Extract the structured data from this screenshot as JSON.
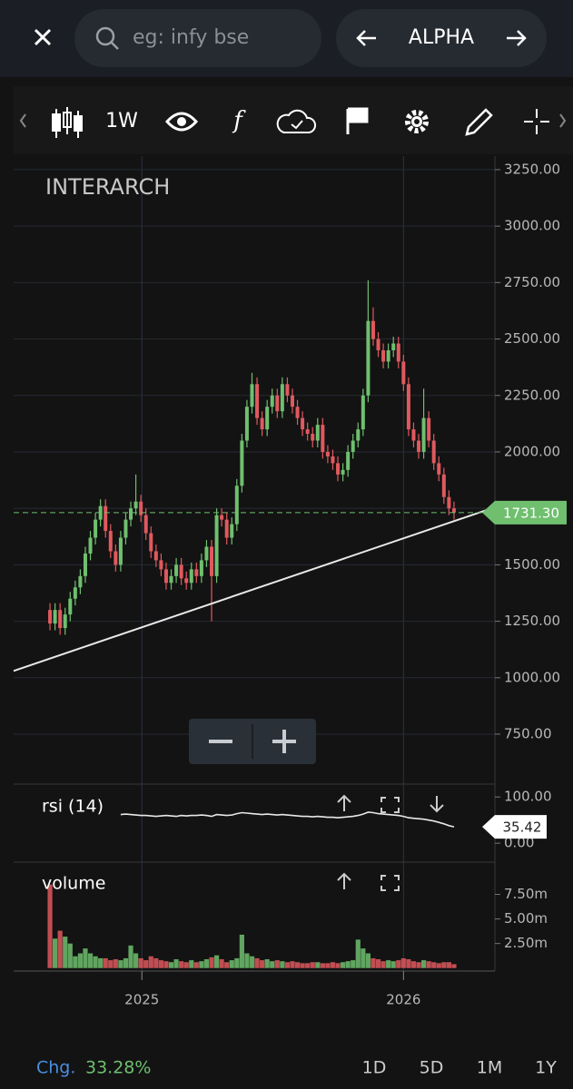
{
  "ui": {
    "search_placeholder": "eg: infy bse",
    "watchlist": "ALPHA",
    "interval": "1W",
    "change_label": "Chg.",
    "change_value": "33.28%",
    "ranges": [
      "1D",
      "5D",
      "1M",
      "1Y"
    ]
  },
  "chart_data": [
    {
      "type": "candlestick",
      "title": "INTERARCH",
      "up_color": "#6fbf6f",
      "down_color": "#e0595e",
      "xlim": [
        -7.2,
        88.1
      ],
      "xticks": [
        {
          "value": 18.2,
          "label": "2025"
        },
        {
          "value": 70,
          "label": "2026"
        }
      ],
      "ylim": [
        537,
        3310
      ],
      "yticks": [
        {
          "value": 750,
          "label": "750.00"
        },
        {
          "value": 1000,
          "label": "1000.00"
        },
        {
          "value": 1250,
          "label": "1250.00"
        },
        {
          "value": 1500,
          "label": "1500.00"
        },
        {
          "value": 1750,
          "label": "1750.00"
        },
        {
          "value": 2000,
          "label": "2000.00"
        },
        {
          "value": 2250,
          "label": "2250.00"
        },
        {
          "value": 2500,
          "label": "2500.00"
        },
        {
          "value": 2750,
          "label": "2750.00"
        },
        {
          "value": 3000,
          "label": "3000.00"
        },
        {
          "value": 3250,
          "label": "3250.00"
        }
      ],
      "grid": true,
      "open": [
        1300,
        1240,
        1300,
        1220,
        1280,
        1350,
        1400,
        1450,
        1550,
        1620,
        1700,
        1760,
        1650,
        1560,
        1500,
        1620,
        1700,
        1750,
        1780,
        1720,
        1640,
        1560,
        1520,
        1480,
        1420,
        1450,
        1500,
        1440,
        1420,
        1480,
        1450,
        1520,
        1580,
        1450,
        1720,
        1700,
        1620,
        1680,
        1850,
        2050,
        2200,
        2300,
        2150,
        2100,
        2200,
        2250,
        2180,
        2300,
        2250,
        2200,
        2150,
        2100,
        2080,
        2050,
        2120,
        2000,
        1980,
        1950,
        1900,
        1920,
        2000,
        2050,
        2100,
        2250,
        2580,
        2500,
        2450,
        2400,
        2450,
        2480,
        2400,
        2300,
        2100,
        2050,
        2000,
        2150,
        2050,
        1950,
        1900,
        1800,
        1750
      ],
      "high": [
        1330,
        1330,
        1330,
        1310,
        1380,
        1430,
        1480,
        1580,
        1650,
        1730,
        1790,
        1790,
        1680,
        1590,
        1650,
        1730,
        1780,
        1900,
        1810,
        1750,
        1670,
        1590,
        1550,
        1510,
        1480,
        1530,
        1530,
        1470,
        1510,
        1510,
        1550,
        1610,
        1610,
        1750,
        1750,
        1730,
        1710,
        1880,
        2080,
        2230,
        2350,
        2330,
        2180,
        2230,
        2280,
        2280,
        2330,
        2330,
        2280,
        2230,
        2180,
        2130,
        2110,
        2150,
        2150,
        2030,
        2010,
        1980,
        1950,
        2030,
        2080,
        2130,
        2280,
        2760,
        2640,
        2530,
        2480,
        2480,
        2510,
        2510,
        2430,
        2330,
        2130,
        2080,
        2280,
        2180,
        2080,
        1980,
        1930,
        1830,
        1780
      ],
      "low": [
        1210,
        1210,
        1190,
        1190,
        1250,
        1320,
        1370,
        1420,
        1520,
        1590,
        1670,
        1620,
        1530,
        1470,
        1470,
        1590,
        1670,
        1720,
        1690,
        1610,
        1530,
        1490,
        1450,
        1390,
        1390,
        1420,
        1410,
        1390,
        1390,
        1420,
        1420,
        1490,
        1250,
        1420,
        1670,
        1590,
        1590,
        1650,
        1820,
        2020,
        2170,
        2120,
        2070,
        2070,
        2170,
        2150,
        2150,
        2220,
        2170,
        2120,
        2070,
        2050,
        2020,
        2020,
        1970,
        1950,
        1920,
        1870,
        1870,
        1890,
        1970,
        2020,
        2070,
        2220,
        2470,
        2420,
        2370,
        2370,
        2420,
        2370,
        2270,
        2070,
        2020,
        1970,
        1970,
        2020,
        1920,
        1870,
        1770,
        1720,
        1700
      ],
      "close": [
        1240,
        1300,
        1220,
        1280,
        1350,
        1400,
        1450,
        1550,
        1620,
        1700,
        1760,
        1650,
        1560,
        1500,
        1620,
        1700,
        1750,
        1780,
        1720,
        1640,
        1560,
        1520,
        1480,
        1420,
        1450,
        1500,
        1440,
        1420,
        1480,
        1450,
        1520,
        1580,
        1450,
        1720,
        1700,
        1620,
        1680,
        1850,
        2050,
        2200,
        2300,
        2150,
        2100,
        2200,
        2250,
        2180,
        2300,
        2250,
        2200,
        2150,
        2100,
        2080,
        2050,
        2120,
        2000,
        1980,
        1950,
        1900,
        1920,
        2000,
        2050,
        2100,
        2250,
        2580,
        2500,
        2450,
        2400,
        2450,
        2480,
        2400,
        2300,
        2100,
        2050,
        2000,
        2150,
        2050,
        1950,
        1900,
        1800,
        1750,
        1731.3
      ],
      "last_price": {
        "value": 1731.3,
        "label": "1731.30"
      },
      "trendline": {
        "x": [
          -7.2,
          88.1
        ],
        "y": [
          1030,
          1755
        ]
      }
    },
    {
      "type": "line",
      "title": "rsi (14)",
      "color": "#e8e8e8",
      "ylim": [
        -37,
        124
      ],
      "yticks": [
        {
          "value": 100,
          "label": "100.00"
        },
        {
          "value": 0,
          "label": "0.00"
        }
      ],
      "values": [
        null,
        null,
        null,
        null,
        null,
        null,
        null,
        null,
        null,
        null,
        null,
        null,
        null,
        null,
        62,
        63,
        62,
        61,
        60,
        60,
        59,
        58,
        59,
        60,
        59,
        58,
        60,
        59,
        60,
        60,
        61,
        60,
        58,
        62,
        61,
        60,
        61,
        64,
        66,
        65,
        64,
        63,
        62,
        63,
        62,
        61,
        62,
        61,
        60,
        59,
        58,
        58,
        57,
        58,
        57,
        56,
        56,
        55,
        56,
        57,
        58,
        60,
        63,
        67,
        66,
        64,
        63,
        62,
        61,
        60,
        58,
        55,
        54,
        53,
        52,
        50,
        48,
        45,
        42,
        38,
        35.42
      ],
      "last_value": {
        "value": 35.42,
        "label": "35.42"
      }
    },
    {
      "type": "bar",
      "title": "volume",
      "ylim": [
        -0.3,
        10.6
      ],
      "yticks": [
        {
          "value": 2.5,
          "label": "2.50m"
        },
        {
          "value": 5,
          "label": "5.00m"
        },
        {
          "value": 7.5,
          "label": "7.50m"
        }
      ],
      "values": [
        8.5,
        3.0,
        3.8,
        3.2,
        2.5,
        1.2,
        1.5,
        2.0,
        1.5,
        1.2,
        1.0,
        1.0,
        0.8,
        0.9,
        0.8,
        1.0,
        2.3,
        1.5,
        1.0,
        0.8,
        1.2,
        1.0,
        0.8,
        0.7,
        0.6,
        0.9,
        0.7,
        0.6,
        0.8,
        0.6,
        0.7,
        0.9,
        1.1,
        1.3,
        0.9,
        0.6,
        0.8,
        1.0,
        3.4,
        1.5,
        1.2,
        1.0,
        0.8,
        0.9,
        0.7,
        0.8,
        0.7,
        0.6,
        0.7,
        0.6,
        0.5,
        0.5,
        0.6,
        0.6,
        0.5,
        0.5,
        0.6,
        0.5,
        0.6,
        0.7,
        0.8,
        2.9,
        2.0,
        1.5,
        1.0,
        0.9,
        0.7,
        0.8,
        0.7,
        0.8,
        1.0,
        0.9,
        0.7,
        0.6,
        0.8,
        0.7,
        0.6,
        0.5,
        0.6,
        0.6,
        0.4
      ]
    }
  ]
}
